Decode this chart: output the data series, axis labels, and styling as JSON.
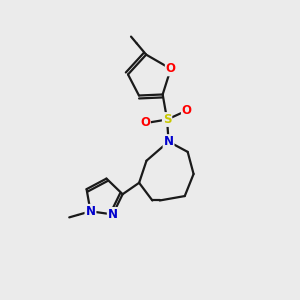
{
  "bg_color": "#ebebeb",
  "bond_color": "#1a1a1a",
  "atom_colors": {
    "O": "#ff0000",
    "N": "#0000cd",
    "S": "#c8c800",
    "C": "#1a1a1a"
  },
  "font_size_atom": 8.5,
  "figsize": [
    3.0,
    3.0
  ],
  "dpi": 100
}
